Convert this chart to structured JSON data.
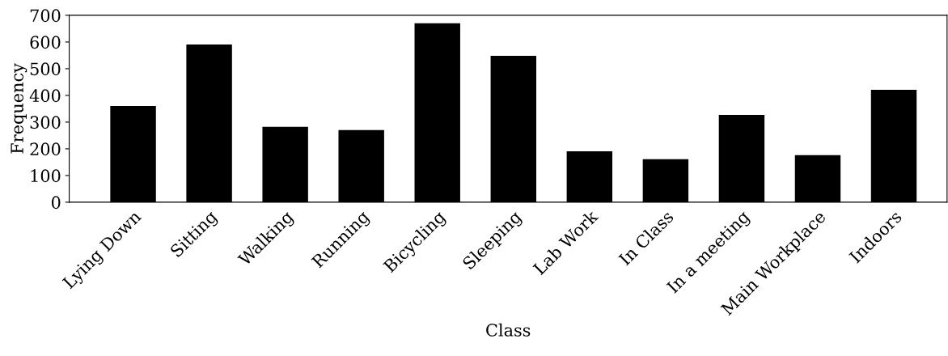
{
  "chart_data": {
    "type": "bar",
    "xlabel": "Class",
    "ylabel": "Frequency",
    "categories": [
      "Lying Down",
      "Sitting",
      "Walking",
      "Running",
      "Bicycling",
      "Sleeping",
      "Lab Work",
      "In Class",
      "In a meeting",
      "Main Workplace",
      "Indoors"
    ],
    "values": [
      360,
      591,
      282,
      270,
      670,
      548,
      191,
      161,
      327,
      176,
      421
    ],
    "color": "#000000",
    "ylim": [
      0,
      700
    ],
    "yticks": [
      0,
      100,
      200,
      300,
      400,
      500,
      600,
      700
    ],
    "grid": false
  }
}
